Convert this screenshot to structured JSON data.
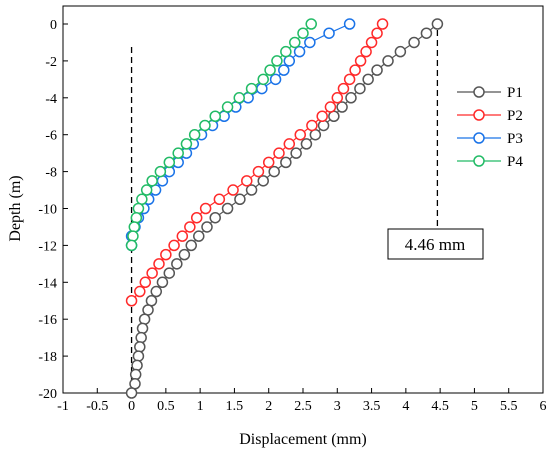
{
  "chart_data": {
    "type": "line",
    "xlabel": "Displacement (mm)",
    "ylabel": "Depth (m)",
    "xlim": [
      -1,
      6
    ],
    "ylim": [
      -20,
      0
    ],
    "xticks": [
      "-1",
      "-0.5",
      "0",
      "0.5",
      "1",
      "1.5",
      "2",
      "2.5",
      "3",
      "3.5",
      "4",
      "4.5",
      "5",
      "5.5",
      "6"
    ],
    "yticks": [
      "0",
      "-2",
      "-4",
      "-6",
      "-8",
      "-10",
      "-12",
      "-14",
      "-16",
      "-18",
      "-20"
    ],
    "grid": false,
    "legend": "right",
    "annotation": {
      "text": "4.46 mm",
      "x_value": 4.46
    },
    "reference_line_x": 0,
    "series": [
      {
        "name": "P1",
        "color": "#555555",
        "marker": "circle-open",
        "x": [
          4.46,
          4.3,
          4.12,
          3.92,
          3.74,
          3.58,
          3.45,
          3.33,
          3.2,
          3.07,
          2.95,
          2.8,
          2.68,
          2.55,
          2.4,
          2.25,
          2.08,
          1.92,
          1.75,
          1.58,
          1.4,
          1.22,
          1.1,
          0.98,
          0.87,
          0.77,
          0.66,
          0.55,
          0.45,
          0.36,
          0.29,
          0.24,
          0.19,
          0.16,
          0.14,
          0.12,
          0.1,
          0.08,
          0.06,
          0.05,
          0.0
        ],
        "y": [
          0,
          -0.5,
          -1,
          -1.5,
          -2,
          -2.5,
          -3,
          -3.5,
          -4,
          -4.5,
          -5,
          -5.5,
          -6,
          -6.5,
          -7,
          -7.5,
          -8,
          -8.5,
          -9,
          -9.5,
          -10,
          -10.5,
          -11,
          -11.5,
          -12,
          -12.5,
          -13,
          -13.5,
          -14,
          -14.5,
          -15,
          -15.5,
          -16,
          -16.5,
          -17,
          -17.5,
          -18,
          -18.5,
          -19,
          -19.5,
          -20
        ]
      },
      {
        "name": "P2",
        "color": "#ff2a2a",
        "marker": "circle-open",
        "x": [
          3.66,
          3.58,
          3.5,
          3.42,
          3.34,
          3.26,
          3.18,
          3.09,
          3.0,
          2.9,
          2.78,
          2.63,
          2.46,
          2.3,
          2.15,
          2.0,
          1.85,
          1.68,
          1.48,
          1.28,
          1.08,
          0.95,
          0.85,
          0.74,
          0.62,
          0.5,
          0.4,
          0.3,
          0.2,
          0.12,
          0.0
        ],
        "y": [
          0,
          -0.5,
          -1,
          -1.5,
          -2,
          -2.5,
          -3,
          -3.5,
          -4,
          -4.5,
          -5,
          -5.5,
          -6,
          -6.5,
          -7,
          -7.5,
          -8,
          -8.5,
          -9,
          -9.5,
          -10,
          -10.5,
          -11,
          -11.5,
          -12,
          -12.5,
          -13,
          -13.5,
          -14,
          -14.5,
          -15
        ]
      },
      {
        "name": "P3",
        "color": "#1a73e8",
        "marker": "circle-open",
        "x": [
          3.18,
          2.88,
          2.6,
          2.45,
          2.3,
          2.22,
          2.1,
          1.9,
          1.7,
          1.52,
          1.35,
          1.18,
          1.02,
          0.9,
          0.8,
          0.68,
          0.55,
          0.45,
          0.35,
          0.25,
          0.18,
          0.1,
          0.05,
          0.0,
          0.0
        ],
        "y": [
          0,
          -0.5,
          -1,
          -1.5,
          -2,
          -2.5,
          -3,
          -3.5,
          -4,
          -4.5,
          -5,
          -5.5,
          -6,
          -6.5,
          -7,
          -7.5,
          -8,
          -8.5,
          -9,
          -9.5,
          -10,
          -10.5,
          -11,
          -11.5,
          -12
        ]
      },
      {
        "name": "P4",
        "color": "#22bb66",
        "marker": "circle-open",
        "x": [
          2.62,
          2.5,
          2.38,
          2.25,
          2.12,
          2.02,
          1.92,
          1.75,
          1.57,
          1.4,
          1.22,
          1.07,
          0.92,
          0.8,
          0.68,
          0.55,
          0.42,
          0.3,
          0.22,
          0.15,
          0.1,
          0.07,
          0.04,
          0.02,
          0.0
        ],
        "y": [
          0,
          -0.5,
          -1,
          -1.5,
          -2,
          -2.5,
          -3,
          -3.5,
          -4,
          -4.5,
          -5,
          -5.5,
          -6,
          -6.5,
          -7,
          -7.5,
          -8,
          -8.5,
          -9,
          -9.5,
          -10,
          -10.5,
          -11,
          -11.5,
          -12
        ]
      }
    ]
  }
}
